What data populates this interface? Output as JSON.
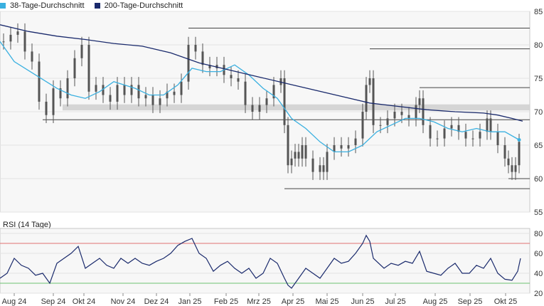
{
  "legend": {
    "ma38_label": "38-Tage-Durchschnitt",
    "ma200_label": "200-Tage-Durchschnitt"
  },
  "rsi_title": "RSI (14 Tage)",
  "colors": {
    "ma38": "#3ab0e0",
    "ma200": "#1a2a6c",
    "candle": "#555555",
    "rsi_line": "#1a2a6c",
    "rsi_upper": "#e07070",
    "rsi_lower": "#6cc070",
    "support_band": "#cfcfcf",
    "grid": "#e3e3e3",
    "plot_bg": "#f7f7f7"
  },
  "chart_data": [
    {
      "type": "candlestick",
      "title": "",
      "ylim": [
        55,
        85
      ],
      "yticks": [
        55,
        60,
        65,
        70,
        75,
        80,
        85
      ],
      "x_ticks": [
        "Aug 24",
        "Sep 24",
        "Okt 24",
        "Nov 24",
        "Dez 24",
        "Jan 25",
        "Feb 25",
        "Mrz 25",
        "Apr 25",
        "Mai 25",
        "Jun 25",
        "Jul 25",
        "Aug 25",
        "Sep 25",
        "Okt 25"
      ],
      "grid": true,
      "series": [
        {
          "name": "38-Tage-Durchschnitt",
          "kind": "line",
          "points": [
            [
              0,
              80.5
            ],
            [
              20,
              77.5
            ],
            [
              50,
              75.5
            ],
            [
              80,
              73.5
            ],
            [
              100,
              72.5
            ],
            [
              120,
              72.0
            ],
            [
              140,
              73.0
            ],
            [
              160,
              74.5
            ],
            [
              190,
              73.5
            ],
            [
              210,
              72.5
            ],
            [
              230,
              72.5
            ],
            [
              250,
              74.0
            ],
            [
              270,
              76.5
            ],
            [
              290,
              76.0
            ],
            [
              310,
              76.0
            ],
            [
              330,
              77.0
            ],
            [
              350,
              75.5
            ],
            [
              370,
              73.5
            ],
            [
              390,
              72.0
            ],
            [
              410,
              69.0
            ],
            [
              430,
              67.5
            ],
            [
              450,
              65.5
            ],
            [
              470,
              64.0
            ],
            [
              490,
              64.0
            ],
            [
              510,
              65.0
            ],
            [
              530,
              67.0
            ],
            [
              550,
              68.0
            ],
            [
              570,
              69.0
            ],
            [
              590,
              69.0
            ],
            [
              610,
              68.5
            ],
            [
              630,
              67.5
            ],
            [
              650,
              67.0
            ],
            [
              670,
              67.5
            ],
            [
              690,
              67.0
            ],
            [
              710,
              67.0
            ],
            [
              730,
              65.8
            ]
          ]
        },
        {
          "name": "200-Tage-Durchschnitt",
          "kind": "line",
          "points": [
            [
              0,
              83.0
            ],
            [
              40,
              82.0
            ],
            [
              80,
              81.3
            ],
            [
              120,
              80.8
            ],
            [
              160,
              80.2
            ],
            [
              200,
              79.8
            ],
            [
              240,
              78.8
            ],
            [
              280,
              77.3
            ],
            [
              320,
              76.3
            ],
            [
              360,
              75.3
            ],
            [
              400,
              74.3
            ],
            [
              440,
              73.3
            ],
            [
              480,
              72.3
            ],
            [
              520,
              71.3
            ],
            [
              560,
              70.8
            ],
            [
              600,
              70.3
            ],
            [
              640,
              70.0
            ],
            [
              680,
              69.8
            ],
            [
              700,
              69.5
            ],
            [
              720,
              69.0
            ],
            [
              735,
              68.6
            ]
          ]
        }
      ],
      "candles_approx": [
        [
          5,
          80.5
        ],
        [
          15,
          81.5
        ],
        [
          25,
          82
        ],
        [
          35,
          79
        ],
        [
          45,
          77.5
        ],
        [
          55,
          71.5
        ],
        [
          65,
          69.5
        ],
        [
          75,
          73.5
        ],
        [
          85,
          72
        ],
        [
          95,
          75
        ],
        [
          105,
          78
        ],
        [
          115,
          80
        ],
        [
          125,
          73
        ],
        [
          135,
          74
        ],
        [
          145,
          72.5
        ],
        [
          155,
          71.5
        ],
        [
          165,
          74
        ],
        [
          175,
          72.5
        ],
        [
          185,
          74
        ],
        [
          195,
          72
        ],
        [
          205,
          72.5
        ],
        [
          215,
          71
        ],
        [
          225,
          72
        ],
        [
          235,
          73
        ],
        [
          245,
          72.5
        ],
        [
          255,
          74.5
        ],
        [
          265,
          80
        ],
        [
          275,
          79
        ],
        [
          285,
          77
        ],
        [
          295,
          76.5
        ],
        [
          305,
          77
        ],
        [
          315,
          75.5
        ],
        [
          325,
          75
        ],
        [
          335,
          74.5
        ],
        [
          345,
          71
        ],
        [
          355,
          70
        ],
        [
          365,
          71
        ],
        [
          375,
          72
        ],
        [
          385,
          74
        ],
        [
          395,
          75
        ],
        [
          400,
          68
        ],
        [
          405,
          62
        ],
        [
          410,
          63
        ],
        [
          415,
          64
        ],
        [
          420,
          63
        ],
        [
          425,
          65
        ],
        [
          430,
          63
        ],
        [
          440,
          61
        ],
        [
          450,
          62
        ],
        [
          455,
          61
        ],
        [
          460,
          64
        ],
        [
          470,
          65
        ],
        [
          480,
          64.5
        ],
        [
          490,
          65
        ],
        [
          500,
          66
        ],
        [
          510,
          70
        ],
        [
          515,
          74
        ],
        [
          520,
          75
        ],
        [
          525,
          68
        ],
        [
          535,
          68
        ],
        [
          545,
          69
        ],
        [
          555,
          70
        ],
        [
          565,
          69.5
        ],
        [
          575,
          69
        ],
        [
          585,
          71
        ],
        [
          590,
          72
        ],
        [
          595,
          68
        ],
        [
          605,
          66
        ],
        [
          615,
          66
        ],
        [
          625,
          67.5
        ],
        [
          635,
          68
        ],
        [
          645,
          67
        ],
        [
          655,
          66
        ],
        [
          665,
          66
        ],
        [
          675,
          67
        ],
        [
          685,
          69
        ],
        [
          690,
          67
        ],
        [
          700,
          65
        ],
        [
          710,
          63
        ],
        [
          715,
          62
        ],
        [
          720,
          61
        ],
        [
          725,
          62
        ],
        [
          730,
          65.5
        ]
      ],
      "annotations": {
        "support_band": [
          70.2,
          71.1
        ],
        "horizontal_lines": [
          {
            "y": 82.5,
            "x_from": 265,
            "x_to": 745
          },
          {
            "y": 79.4,
            "x_from": 520,
            "x_to": 745
          },
          {
            "y": 73.6,
            "x_from": 590,
            "x_to": 745
          },
          {
            "y": 68.8,
            "x_from": 60,
            "x_to": 745
          },
          {
            "y": 58.5,
            "x_from": 400,
            "x_to": 745
          },
          {
            "y": 60.0,
            "x_from": 715,
            "x_to": 745
          }
        ]
      }
    },
    {
      "type": "line",
      "title": "RSI (14 Tage)",
      "ylim": [
        20,
        85
      ],
      "yticks": [
        20,
        40,
        60,
        80
      ],
      "reference_lines": [
        70,
        30
      ],
      "series": [
        {
          "name": "RSI",
          "points": [
            [
              0,
              35
            ],
            [
              10,
              40
            ],
            [
              20,
              55
            ],
            [
              30,
              48
            ],
            [
              40,
              45
            ],
            [
              50,
              38
            ],
            [
              60,
              40
            ],
            [
              70,
              30
            ],
            [
              80,
              50
            ],
            [
              90,
              55
            ],
            [
              100,
              60
            ],
            [
              110,
              67
            ],
            [
              120,
              45
            ],
            [
              130,
              50
            ],
            [
              140,
              55
            ],
            [
              150,
              48
            ],
            [
              160,
              45
            ],
            [
              170,
              55
            ],
            [
              180,
              50
            ],
            [
              190,
              55
            ],
            [
              200,
              50
            ],
            [
              210,
              48
            ],
            [
              220,
              52
            ],
            [
              230,
              55
            ],
            [
              240,
              60
            ],
            [
              250,
              68
            ],
            [
              260,
              72
            ],
            [
              270,
              75
            ],
            [
              280,
              60
            ],
            [
              290,
              55
            ],
            [
              300,
              42
            ],
            [
              310,
              48
            ],
            [
              320,
              52
            ],
            [
              330,
              45
            ],
            [
              340,
              40
            ],
            [
              350,
              45
            ],
            [
              360,
              35
            ],
            [
              370,
              40
            ],
            [
              380,
              55
            ],
            [
              390,
              50
            ],
            [
              400,
              35
            ],
            [
              405,
              28
            ],
            [
              410,
              25
            ],
            [
              420,
              35
            ],
            [
              430,
              45
            ],
            [
              440,
              40
            ],
            [
              450,
              35
            ],
            [
              460,
              45
            ],
            [
              470,
              55
            ],
            [
              480,
              50
            ],
            [
              490,
              52
            ],
            [
              500,
              60
            ],
            [
              510,
              70
            ],
            [
              515,
              78
            ],
            [
              520,
              72
            ],
            [
              525,
              55
            ],
            [
              540,
              45
            ],
            [
              550,
              50
            ],
            [
              560,
              48
            ],
            [
              570,
              52
            ],
            [
              580,
              50
            ],
            [
              590,
              62
            ],
            [
              600,
              42
            ],
            [
              610,
              40
            ],
            [
              620,
              38
            ],
            [
              630,
              45
            ],
            [
              640,
              50
            ],
            [
              650,
              40
            ],
            [
              660,
              40
            ],
            [
              670,
              48
            ],
            [
              680,
              45
            ],
            [
              690,
              55
            ],
            [
              700,
              40
            ],
            [
              710,
              34
            ],
            [
              720,
              33
            ],
            [
              728,
              42
            ],
            [
              732,
              55
            ]
          ]
        }
      ]
    }
  ],
  "y_labels": [
    "85",
    "80",
    "75",
    "70",
    "65",
    "60",
    "55"
  ],
  "rsi_labels": [
    "80",
    "60",
    "40",
    "20"
  ],
  "x_labels": [
    "Aug 24",
    "Sep 24",
    "Okt 24",
    "Nov 24",
    "Dez 24",
    "Jan 25",
    "Feb 25",
    "Mrz 25",
    "Apr 25",
    "Mai 25",
    "Jun 25",
    "Jul 25",
    "Aug 25",
    "Sep 25",
    "Okt 25"
  ]
}
